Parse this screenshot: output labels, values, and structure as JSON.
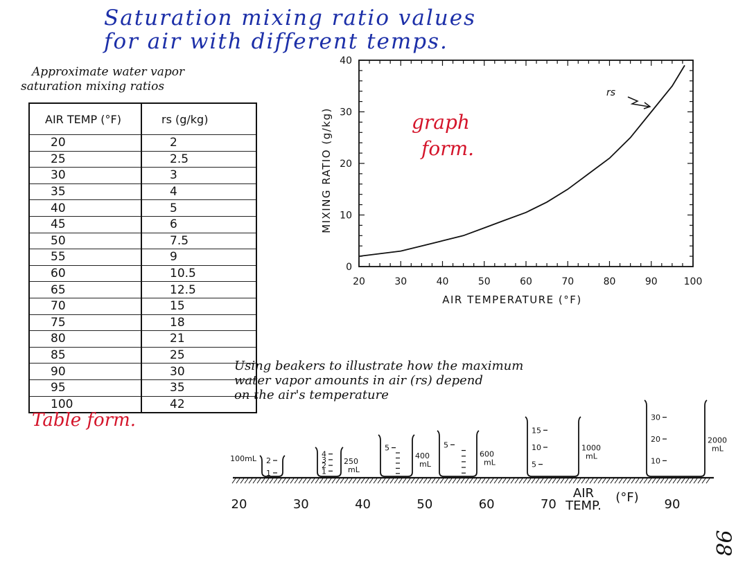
{
  "title": {
    "line1": "Saturation mixing ratio values",
    "line2": "for air with different temps."
  },
  "table": {
    "caption_line1": "Approximate water vapor",
    "caption_line2": "saturation mixing ratios",
    "header_col1": "AIR TEMP (°F)",
    "header_col2": "rs (g/kg)",
    "rows": [
      [
        "20",
        "2"
      ],
      [
        "25",
        "2.5"
      ],
      [
        "30",
        "3"
      ],
      [
        "35",
        "4"
      ],
      [
        "40",
        "5"
      ],
      [
        "45",
        "6"
      ],
      [
        "50",
        "7.5"
      ],
      [
        "55",
        "9"
      ],
      [
        "60",
        "10.5"
      ],
      [
        "65",
        "12.5"
      ],
      [
        "70",
        "15"
      ],
      [
        "75",
        "18"
      ],
      [
        "80",
        "21"
      ],
      [
        "85",
        "25"
      ],
      [
        "90",
        "30"
      ],
      [
        "95",
        "35"
      ],
      [
        "100",
        "42"
      ]
    ],
    "form_label": "Table form."
  },
  "graph_form_label": [
    "graph",
    "form."
  ],
  "chart_data": {
    "type": "line",
    "xlabel": "AIR TEMPERATURE (°F)",
    "ylabel": "MIXING RATIO (g/kg)",
    "xlim": [
      20,
      100
    ],
    "ylim": [
      0,
      40
    ],
    "x_ticks": [
      20,
      30,
      40,
      50,
      60,
      70,
      80,
      90,
      100
    ],
    "y_ticks": [
      0,
      10,
      20,
      30,
      40
    ],
    "grid": false,
    "series": [
      {
        "name": "rs",
        "x": [
          20,
          25,
          30,
          35,
          40,
          45,
          50,
          55,
          60,
          65,
          70,
          75,
          80,
          85,
          90,
          95,
          98
        ],
        "y": [
          2,
          2.5,
          3,
          4,
          5,
          6,
          7.5,
          9,
          10.5,
          12.5,
          15,
          18,
          21,
          25,
          30,
          35,
          39
        ]
      }
    ],
    "annotation": "rs"
  },
  "beakers": {
    "caption": [
      "Using beakers to illustrate how the maximum",
      "water vapor amounts in air (rs) depend",
      "on the air's temperature"
    ],
    "items": [
      {
        "temp_f": 25,
        "volume_label": "100mL",
        "scale_labels": [
          "2",
          "1"
        ]
      },
      {
        "temp_f": 35,
        "volume_label": "250 mL",
        "scale_labels": [
          "4",
          "3",
          "2",
          "1"
        ]
      },
      {
        "temp_f": 45,
        "volume_label": "400 mL",
        "scale_labels": [
          "5"
        ]
      },
      {
        "temp_f": 55,
        "volume_label": "600 mL",
        "scale_labels": [
          "5"
        ]
      },
      {
        "temp_f": 70,
        "volume_label": "1000 mL",
        "scale_labels": [
          "15",
          "10",
          "5"
        ]
      },
      {
        "temp_f": 90,
        "volume_label": "2000 mL",
        "scale_labels": [
          "30",
          "20",
          "10"
        ]
      }
    ],
    "temperature_ticks": [
      "20",
      "30",
      "40",
      "50",
      "60",
      "70",
      "90"
    ],
    "axis_label": "AIR TEMP. (°F)"
  },
  "page_number": "98",
  "colors": {
    "blue_ink": "#1c2fa8",
    "red_ink": "#d4142a",
    "black_ink": "#111111"
  }
}
